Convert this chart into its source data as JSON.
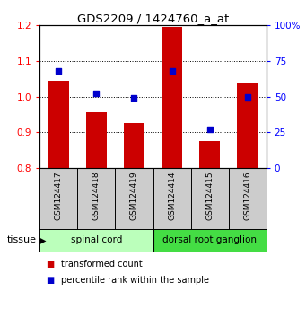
{
  "title": "GDS2209 / 1424760_a_at",
  "samples": [
    "GSM124417",
    "GSM124418",
    "GSM124419",
    "GSM124414",
    "GSM124415",
    "GSM124416"
  ],
  "transformed_count": [
    1.045,
    0.955,
    0.925,
    1.195,
    0.875,
    1.04
  ],
  "percentile_rank": [
    68,
    52,
    49,
    68,
    27,
    50
  ],
  "ylim_left": [
    0.8,
    1.2
  ],
  "ylim_right": [
    0,
    100
  ],
  "yticks_left": [
    0.8,
    0.9,
    1.0,
    1.1,
    1.2
  ],
  "yticks_right": [
    0,
    25,
    50,
    75,
    100
  ],
  "ytick_right_labels": [
    "0",
    "25",
    "50",
    "75",
    "100%"
  ],
  "grid_lines": [
    0.9,
    1.0,
    1.1
  ],
  "bar_color": "#cc0000",
  "dot_color": "#0000cc",
  "bar_width": 0.55,
  "bg_sample": "#cccccc",
  "bg_spinal": "#bbffbb",
  "bg_ganglion": "#44dd44",
  "spinal_label": "spinal cord",
  "ganglion_label": "dorsal root ganglion",
  "tissue_label": "tissue",
  "legend_bar": "transformed count",
  "legend_dot": "percentile rank within the sample",
  "group_split": 2.5
}
